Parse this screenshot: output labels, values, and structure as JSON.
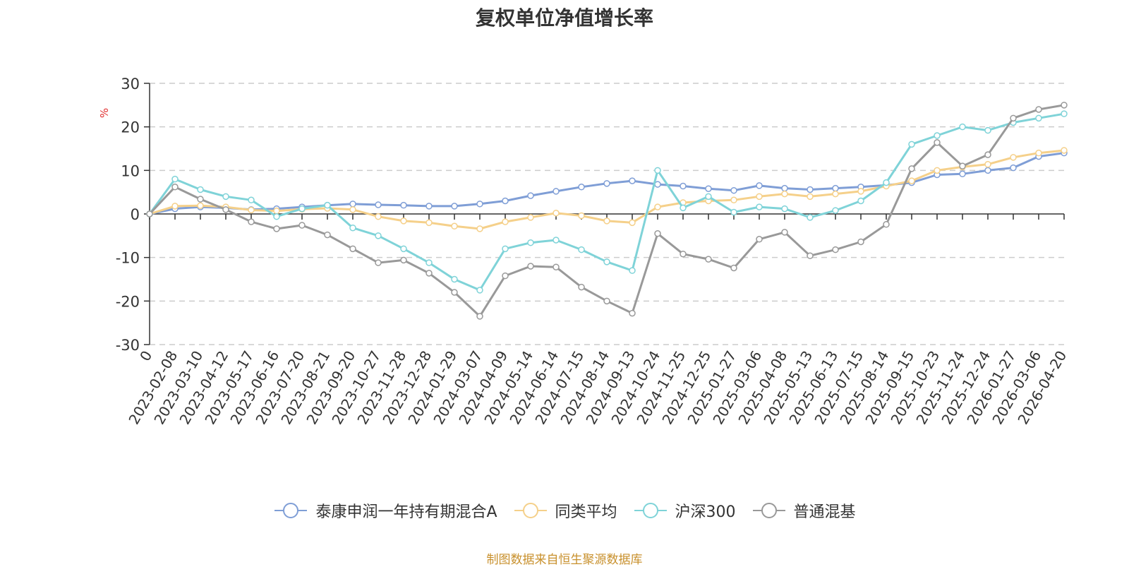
{
  "title": "复权单位净值增长率",
  "source_note": "制图数据来自恒生聚源数据库",
  "chart_data": {
    "type": "line",
    "title": "复权单位净值增长率",
    "ylabel": "%",
    "ylim": [
      -30,
      30
    ],
    "yticks": [
      "30",
      "20",
      "10",
      "0",
      "-10",
      "-20",
      "-30"
    ],
    "yticks_values": [
      30,
      20,
      10,
      0,
      -10,
      -20,
      -30
    ],
    "grid": true,
    "legend_position": "bottom",
    "categories": [
      "0",
      "2023-02-08",
      "2023-03-10",
      "2023-04-12",
      "2023-05-17",
      "2023-06-16",
      "2023-07-20",
      "2023-08-21",
      "2023-09-20",
      "2023-10-27",
      "2023-11-28",
      "2023-12-28",
      "2024-01-29",
      "2024-03-07",
      "2024-04-09",
      "2024-05-14",
      "2024-06-14",
      "2024-07-15",
      "2024-08-14",
      "2024-09-13",
      "2024-10-24",
      "2024-11-25",
      "2024-12-25",
      "2025-01-27",
      "2025-03-06",
      "2025-04-08",
      "2025-05-13",
      "2025-06-13",
      "2025-07-15",
      "2025-08-14",
      "2025-09-15",
      "2025-10-23",
      "2025-11-24",
      "2025-12-24",
      "2026-01-27",
      "2026-03-06",
      "2026-04-20"
    ],
    "series": [
      {
        "name": "泰康申润一年持有期混合A",
        "color": "#7f9ed6",
        "values": [
          0,
          1.2,
          1.6,
          1.4,
          1.0,
          1.2,
          1.6,
          2.0,
          2.3,
          2.1,
          2.0,
          1.8,
          1.8,
          2.3,
          3.0,
          4.2,
          5.2,
          6.2,
          7.0,
          7.6,
          6.8,
          6.4,
          5.8,
          5.4,
          6.5,
          5.9,
          5.6,
          5.9,
          6.2,
          6.6,
          7.2,
          9.0,
          9.2,
          10.0,
          10.6,
          13.2,
          14.0
        ]
      },
      {
        "name": "同类平均",
        "color": "#f5d08a",
        "values": [
          0,
          1.8,
          1.9,
          1.6,
          0.9,
          0.7,
          1.1,
          1.3,
          1.0,
          -0.6,
          -1.6,
          -2.0,
          -2.8,
          -3.4,
          -1.8,
          -0.8,
          0.2,
          -0.4,
          -1.6,
          -2.0,
          1.6,
          2.6,
          3.0,
          3.2,
          4.0,
          4.6,
          4.0,
          4.6,
          5.2,
          6.4,
          7.6,
          10.0,
          10.8,
          11.4,
          13.0,
          14.0,
          14.6
        ]
      },
      {
        "name": "沪深300",
        "color": "#7fd3d8",
        "values": [
          0,
          8.0,
          5.6,
          4.0,
          3.2,
          -0.6,
          1.2,
          2.0,
          -3.2,
          -5.0,
          -8.0,
          -11.2,
          -15.0,
          -17.5,
          -8.0,
          -6.6,
          -6.0,
          -8.2,
          -11.0,
          -13.0,
          10.0,
          1.4,
          4.0,
          0.4,
          1.6,
          1.2,
          -0.8,
          0.8,
          3.0,
          7.2,
          16.0,
          18.0,
          20.0,
          19.2,
          21.0,
          22.0,
          23.0
        ]
      },
      {
        "name": "普通混基",
        "color": "#999999",
        "values": [
          0,
          6.2,
          3.4,
          1.0,
          -1.8,
          -3.4,
          -2.6,
          -4.8,
          -8.0,
          -11.2,
          -10.6,
          -13.6,
          -18.0,
          -23.5,
          -14.2,
          -12.0,
          -12.2,
          -16.8,
          -20.0,
          -22.8,
          -4.5,
          -9.2,
          -10.4,
          -12.4,
          -5.8,
          -4.2,
          -9.6,
          -8.2,
          -6.4,
          -2.4,
          10.4,
          16.4,
          11.0,
          13.6,
          22.0,
          24.0,
          25.0
        ]
      }
    ]
  }
}
